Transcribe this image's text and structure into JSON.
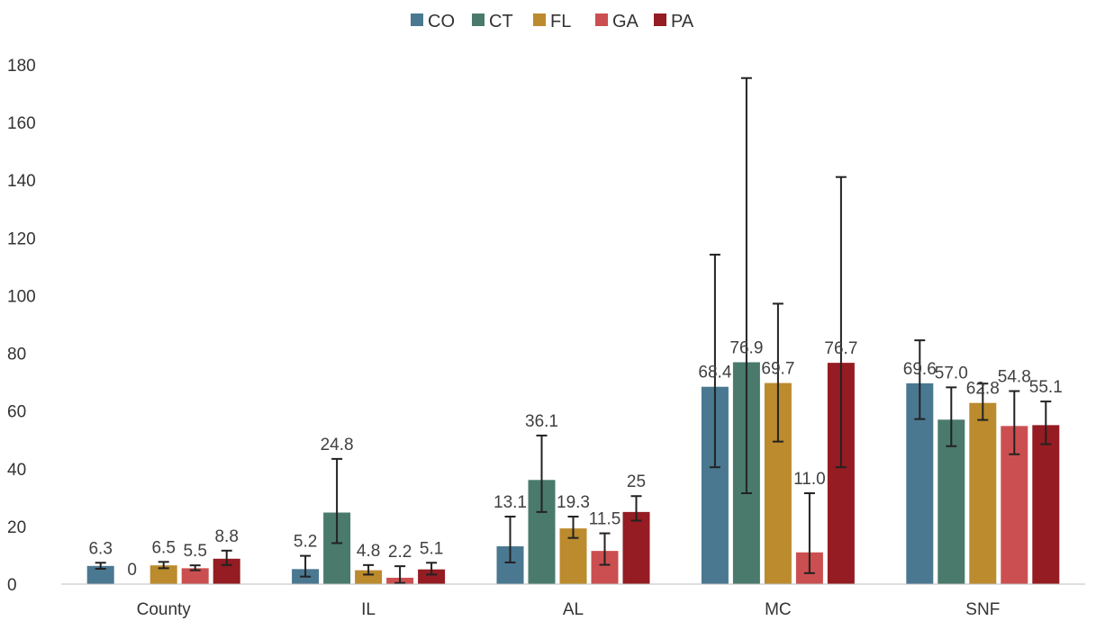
{
  "chart_data": {
    "type": "bar",
    "categories": [
      "County",
      "IL",
      "AL",
      "MC",
      "SNF"
    ],
    "series": [
      {
        "name": "CO",
        "color": "#4a7891",
        "values": [
          6.3,
          5.2,
          13.1,
          68.4,
          69.6
        ],
        "labels": [
          "6.3",
          "5.2",
          "13.1",
          "68.4",
          "69.6"
        ],
        "err_low": [
          5.3,
          2.6,
          7.5,
          40.5,
          57.2
        ],
        "err_high": [
          7.4,
          9.8,
          23.4,
          114.2,
          84.5
        ]
      },
      {
        "name": "CT",
        "color": "#4a7a6c",
        "values": [
          0,
          24.8,
          36.1,
          76.9,
          57.0
        ],
        "labels": [
          "0",
          "24.8",
          "36.1",
          "76.9",
          "57.0"
        ],
        "err_low": [
          0,
          14.2,
          25.0,
          31.5,
          47.8
        ],
        "err_high": [
          0,
          43.4,
          51.5,
          175.4,
          68.2
        ]
      },
      {
        "name": "FL",
        "color": "#bb8b2d",
        "values": [
          6.5,
          4.8,
          19.3,
          69.7,
          62.8
        ],
        "labels": [
          "6.5",
          "4.8",
          "19.3",
          "69.7",
          "62.8"
        ],
        "err_low": [
          5.5,
          3.3,
          16.0,
          49.4,
          56.9
        ],
        "err_high": [
          7.7,
          6.6,
          23.4,
          97.2,
          69.5
        ]
      },
      {
        "name": "GA",
        "color": "#cb4f50",
        "values": [
          5.5,
          2.2,
          11.5,
          11.0,
          54.8
        ],
        "labels": [
          "5.5",
          "2.2",
          "11.5",
          "11.0",
          "54.8"
        ],
        "err_low": [
          4.8,
          0.4,
          6.7,
          3.8,
          45.0
        ],
        "err_high": [
          6.5,
          6.2,
          17.6,
          31.5,
          66.9
        ]
      },
      {
        "name": "PA",
        "color": "#941c22",
        "values": [
          8.8,
          5.1,
          25.0,
          76.7,
          55.1
        ],
        "labels": [
          "8.8",
          "5.1",
          "25",
          "76.7",
          "55.1"
        ],
        "err_low": [
          6.6,
          3.3,
          22.0,
          40.5,
          48.5
        ],
        "err_high": [
          11.6,
          7.4,
          30.5,
          141.1,
          63.3
        ]
      }
    ],
    "ylim": [
      0,
      180
    ],
    "yticks": [
      0,
      20,
      40,
      60,
      80,
      100,
      120,
      140,
      160,
      180
    ],
    "grid": false,
    "legend_position": "top-center",
    "error_bars": true,
    "title": "",
    "xlabel": "",
    "ylabel": ""
  }
}
